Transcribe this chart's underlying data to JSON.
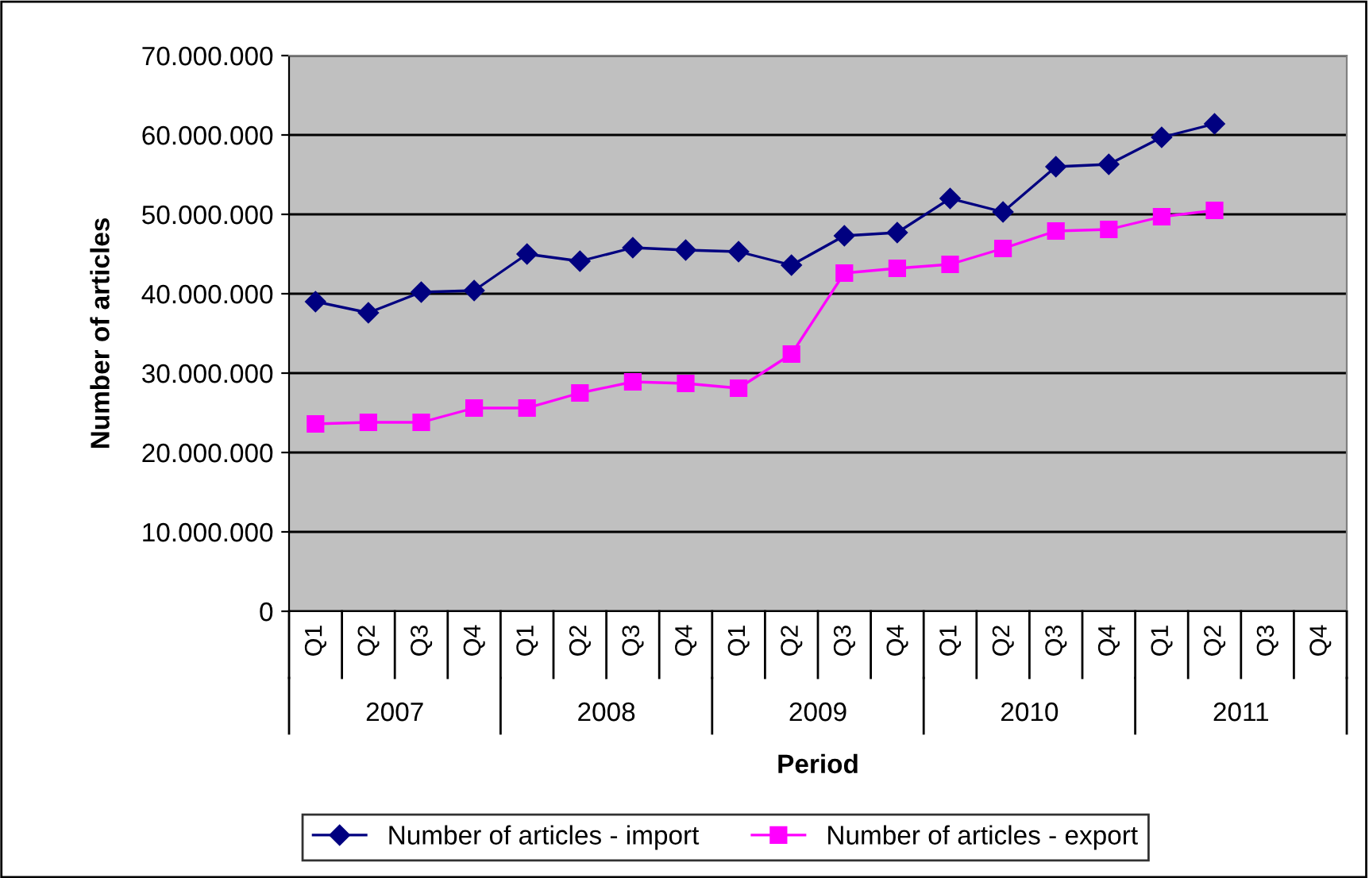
{
  "chart_data": {
    "type": "line",
    "xlabel": "Period",
    "ylabel": "Number of articles",
    "categories": [
      "Q1",
      "Q2",
      "Q3",
      "Q4",
      "Q1",
      "Q2",
      "Q3",
      "Q4",
      "Q1",
      "Q2",
      "Q3",
      "Q4",
      "Q1",
      "Q2",
      "Q3",
      "Q4",
      "Q1",
      "Q2",
      "Q3",
      "Q4"
    ],
    "annotations": [
      "2007",
      "2008",
      "2009",
      "2010",
      "2011"
    ],
    "series": [
      {
        "name": "Number of articles - import",
        "color": "#000080",
        "marker": "diamond",
        "values": [
          39000000,
          37600000,
          40200000,
          40400000,
          45000000,
          44100000,
          45800000,
          45500000,
          45300000,
          43600000,
          47300000,
          47700000,
          52000000,
          50300000,
          56000000,
          56300000,
          59700000,
          61400000,
          null,
          null
        ]
      },
      {
        "name": "Number of articles - export",
        "color": "#ff00ff",
        "marker": "square",
        "values": [
          23600000,
          23800000,
          23800000,
          25600000,
          25600000,
          27500000,
          28900000,
          28700000,
          28100000,
          32400000,
          42600000,
          43200000,
          43700000,
          45700000,
          47900000,
          48100000,
          49700000,
          50500000,
          null,
          null
        ]
      }
    ],
    "ylim": [
      0,
      70000000
    ],
    "yticks": [
      0,
      {
        "value": 10000000,
        "label": "10.000.000"
      },
      {
        "value": 20000000,
        "label": "20.000.000"
      },
      {
        "value": 30000000,
        "label": "30.000.000"
      },
      {
        "value": 40000000,
        "label": "40.000.000"
      },
      {
        "value": 50000000,
        "label": "50.000.000"
      },
      {
        "value": 60000000,
        "label": "60.000.000"
      },
      {
        "value": 70000000,
        "label": "70.000.000"
      }
    ],
    "grid": "y",
    "legend": "bottom",
    "line_style": "solid"
  }
}
